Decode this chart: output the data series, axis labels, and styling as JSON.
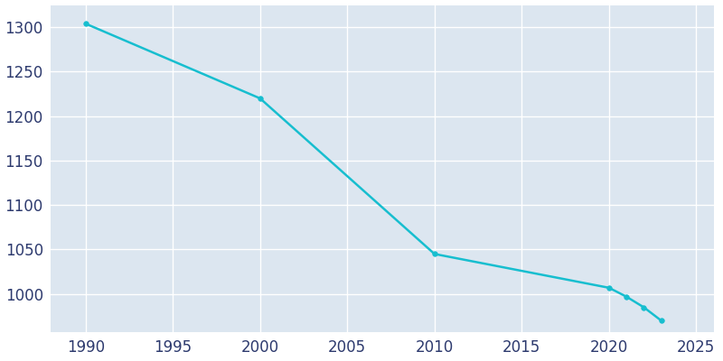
{
  "years": [
    1990,
    2000,
    2010,
    2020,
    2021,
    2022,
    2023
  ],
  "population": [
    1304,
    1220,
    1045,
    1007,
    997,
    985,
    970
  ],
  "line_color": "#17BECF",
  "marker_color": "#17BECF",
  "axes_bg_color": "#dce6f0",
  "fig_bg_color": "#ffffff",
  "xlim": [
    1988,
    2026
  ],
  "ylim": [
    957,
    1325
  ],
  "xticks": [
    1990,
    1995,
    2000,
    2005,
    2010,
    2015,
    2020,
    2025
  ],
  "yticks": [
    1000,
    1050,
    1100,
    1150,
    1200,
    1250,
    1300
  ],
  "grid_color": "#ffffff",
  "tick_label_color": "#2d3a6e",
  "tick_fontsize": 12,
  "line_width": 1.8,
  "marker_size": 4
}
